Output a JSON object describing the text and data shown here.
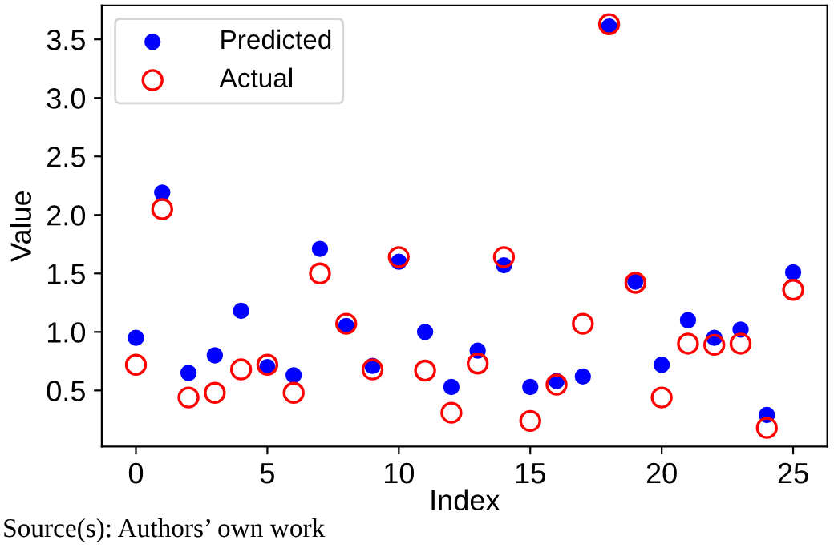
{
  "chart_data": {
    "type": "scatter",
    "xlabel": "Index",
    "ylabel": "Value",
    "x": [
      0,
      1,
      2,
      3,
      4,
      5,
      6,
      7,
      8,
      9,
      10,
      11,
      12,
      13,
      14,
      15,
      16,
      17,
      18,
      19,
      20,
      21,
      22,
      23,
      24,
      25
    ],
    "series": [
      {
        "name": "Predicted",
        "color": "#0000ff",
        "marker": "circle",
        "values": [
          0.95,
          2.19,
          0.65,
          0.8,
          1.18,
          0.7,
          0.63,
          1.71,
          1.05,
          0.71,
          1.6,
          1.0,
          0.53,
          0.84,
          1.57,
          0.53,
          0.58,
          0.62,
          3.61,
          1.43,
          0.72,
          1.1,
          0.95,
          1.02,
          0.29,
          1.51
        ]
      },
      {
        "name": "Actual",
        "color": "#ff0000",
        "marker": "circle_open",
        "values": [
          0.72,
          2.05,
          0.44,
          0.48,
          0.68,
          0.72,
          0.48,
          1.5,
          1.07,
          0.68,
          1.64,
          0.67,
          0.31,
          0.73,
          1.64,
          0.24,
          0.55,
          1.07,
          3.63,
          1.42,
          0.44,
          0.9,
          0.89,
          0.9,
          0.18,
          1.36
        ]
      }
    ],
    "xlim": [
      -1.3,
      26.3
    ],
    "xticks": [
      0,
      5,
      10,
      15,
      20,
      25
    ],
    "ylim": [
      0.02,
      3.79
    ],
    "yticks": [
      0.5,
      {
        "value": 1,
        "label": "1.0"
      },
      1.5,
      {
        "value": 2,
        "label": "2.0"
      },
      2.5,
      {
        "value": 3,
        "label": "3.0"
      },
      3.5
    ],
    "legend": "top left",
    "grid": false,
    "annotations": [
      "Source(s): Authors’ own work"
    ]
  }
}
